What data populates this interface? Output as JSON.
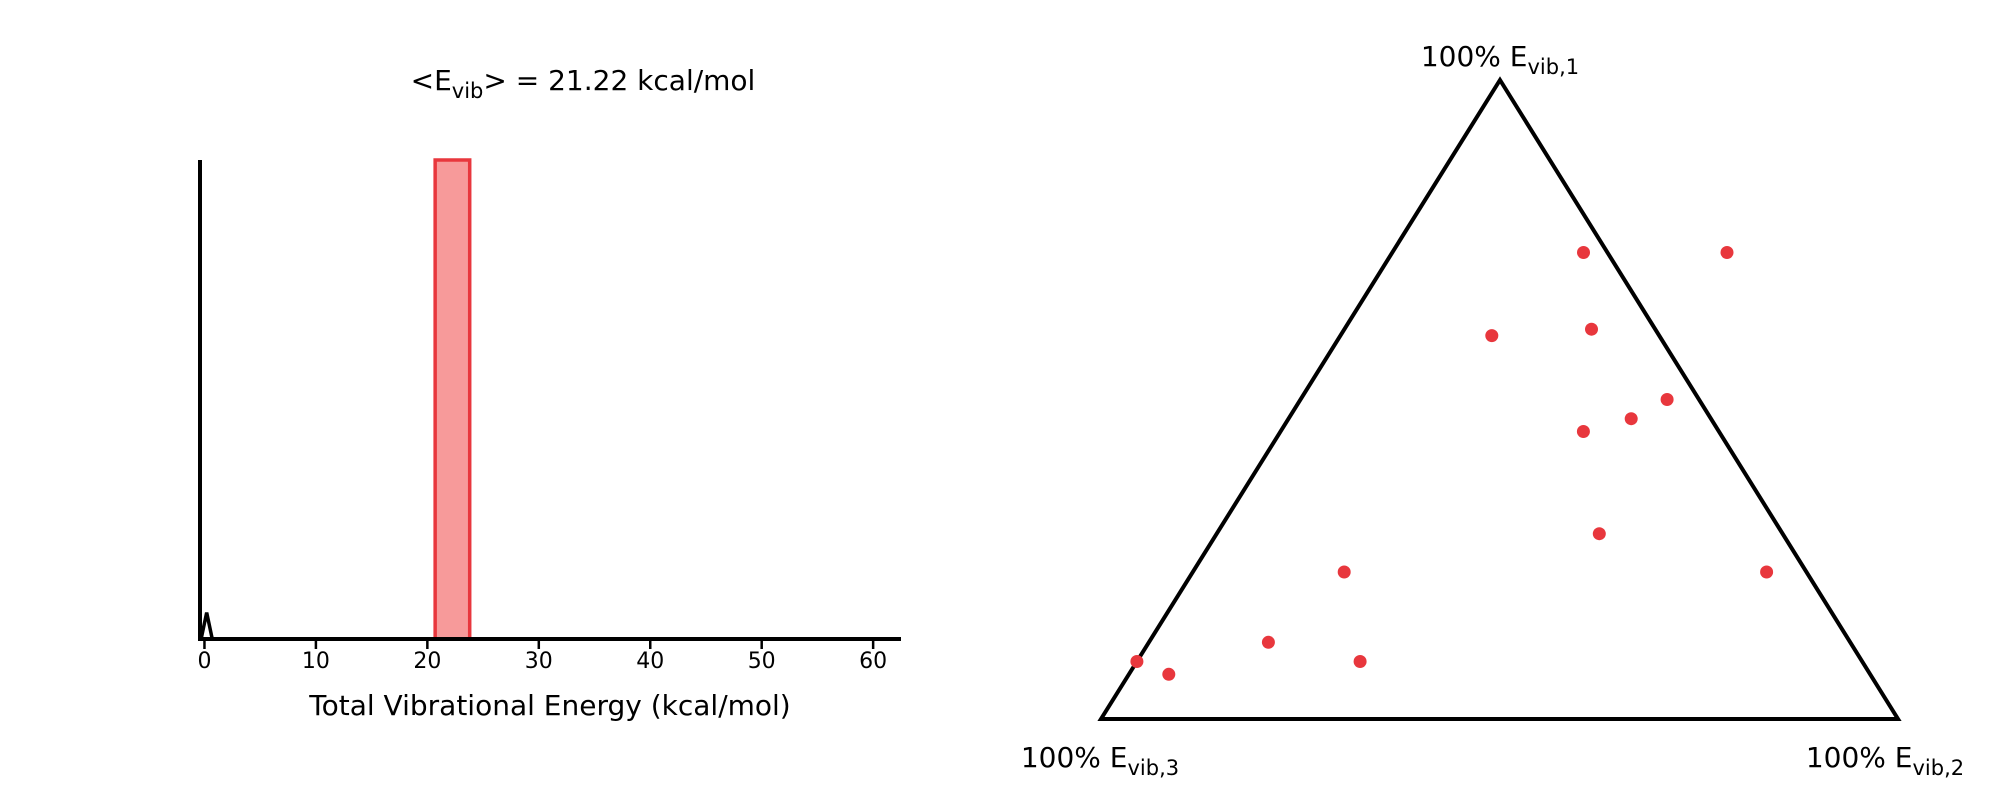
{
  "chart_data": [
    {
      "type": "bar",
      "title_main": "<E",
      "title_sub": "vib",
      "title_rest": "> = 21.22 kcal/mol",
      "xlabel": "Total Vibrational Energy (kcal/mol)",
      "ylabel": "",
      "xlim": [
        -0.4,
        62.5
      ],
      "ylim": [
        0,
        1
      ],
      "xticks": [
        0,
        10,
        20,
        30,
        40,
        50,
        60
      ],
      "tick_labels": [
        "0",
        "10",
        "20",
        "30",
        "40",
        "50",
        "60"
      ],
      "bars": [
        {
          "x_start": 20.7,
          "x_end": 23.8,
          "value": 1.0
        }
      ],
      "trace": {
        "x": [
          -0.3,
          0.2,
          0.7
        ],
        "y": [
          0,
          0.055,
          0
        ]
      },
      "colors": {
        "bar_fill": "#f79a9a",
        "bar_edge": "#e8373d",
        "axis": "#000000"
      },
      "grid": false
    },
    {
      "type": "scatter",
      "subtype": "ternary",
      "labels": [
        {
          "main": "100% E",
          "sub": "vib,1"
        },
        {
          "main": "100% E",
          "sub": "vib,2"
        },
        {
          "main": "100% E",
          "sub": "vib,3"
        }
      ],
      "points": [
        {
          "e1": 0.73,
          "e2": 0.24,
          "e3": 0.03
        },
        {
          "e1": 0.73,
          "e2": 0.42,
          "e3": -0.15
        },
        {
          "e1": 0.6,
          "e2": 0.19,
          "e3": 0.21
        },
        {
          "e1": 0.61,
          "e2": 0.31,
          "e3": 0.08
        },
        {
          "e1": 0.5,
          "e2": 0.46,
          "e3": 0.04
        },
        {
          "e1": 0.45,
          "e2": 0.38,
          "e3": 0.17
        },
        {
          "e1": 0.47,
          "e2": 0.43,
          "e3": 0.1
        },
        {
          "e1": 0.29,
          "e2": 0.48,
          "e3": 0.23
        },
        {
          "e1": 0.23,
          "e2": 0.72,
          "e3": 0.05
        },
        {
          "e1": 0.23,
          "e2": 0.19,
          "e3": 0.58
        },
        {
          "e1": 0.12,
          "e2": 0.15,
          "e3": 0.73
        },
        {
          "e1": 0.09,
          "e2": 0.28,
          "e3": 0.63
        },
        {
          "e1": 0.09,
          "e2": 0.0,
          "e3": 0.91
        },
        {
          "e1": 0.07,
          "e2": 0.05,
          "e3": 0.88
        }
      ],
      "colors": {
        "point": "#e8373d",
        "frame": "#000000"
      },
      "grid": false
    }
  ]
}
